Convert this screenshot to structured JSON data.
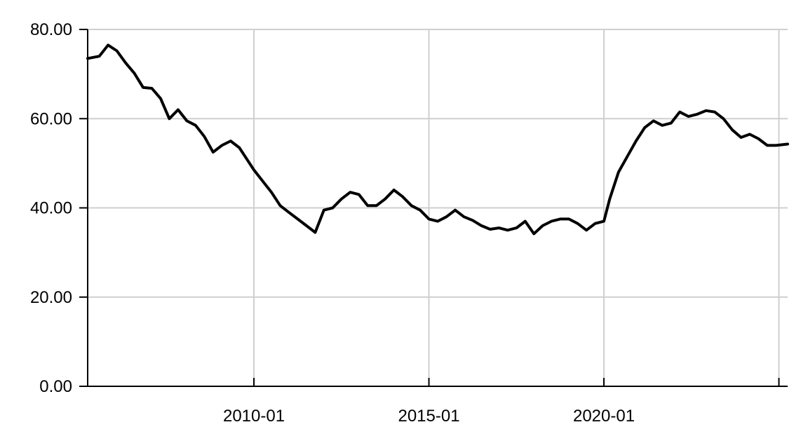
{
  "chart_data": {
    "type": "line",
    "title": "",
    "xlabel": "",
    "ylabel": "",
    "grid": true,
    "xlim": [
      "2005-04",
      "2025-04"
    ],
    "ylim": [
      0,
      80
    ],
    "y_ticks": [
      0,
      20,
      40,
      60,
      80
    ],
    "y_tick_labels": [
      "0.00",
      "20.00",
      "40.00",
      "60.00",
      "80.00"
    ],
    "x_ticks": [
      "2010-01",
      "2015-01",
      "2020-01",
      "2025-01"
    ],
    "x_tick_labels": [
      "2010-01",
      "2015-01",
      "2020-01",
      ""
    ],
    "series": [
      {
        "color": "#000000",
        "points": [
          [
            "2005-04",
            73.5
          ],
          [
            "2005-08",
            74.0
          ],
          [
            "2005-11",
            76.5
          ],
          [
            "2006-02",
            75.2
          ],
          [
            "2006-05",
            72.5
          ],
          [
            "2006-08",
            70.2
          ],
          [
            "2006-11",
            67.0
          ],
          [
            "2007-02",
            66.8
          ],
          [
            "2007-05",
            64.5
          ],
          [
            "2007-08",
            60.0
          ],
          [
            "2007-11",
            62.0
          ],
          [
            "2008-02",
            59.5
          ],
          [
            "2008-05",
            58.5
          ],
          [
            "2008-08",
            56.0
          ],
          [
            "2008-11",
            52.5
          ],
          [
            "2009-02",
            54.0
          ],
          [
            "2009-05",
            55.0
          ],
          [
            "2009-08",
            53.5
          ],
          [
            "2009-11",
            50.5
          ],
          [
            "2010-01",
            48.5
          ],
          [
            "2010-04",
            46.0
          ],
          [
            "2010-07",
            43.5
          ],
          [
            "2010-10",
            40.5
          ],
          [
            "2011-01",
            39.0
          ],
          [
            "2011-04",
            37.5
          ],
          [
            "2011-07",
            36.0
          ],
          [
            "2011-10",
            34.5
          ],
          [
            "2012-01",
            39.5
          ],
          [
            "2012-04",
            40.0
          ],
          [
            "2012-07",
            42.0
          ],
          [
            "2012-10",
            43.5
          ],
          [
            "2013-01",
            43.0
          ],
          [
            "2013-04",
            40.5
          ],
          [
            "2013-07",
            40.5
          ],
          [
            "2013-10",
            42.0
          ],
          [
            "2014-01",
            44.0
          ],
          [
            "2014-04",
            42.5
          ],
          [
            "2014-07",
            40.5
          ],
          [
            "2014-10",
            39.5
          ],
          [
            "2015-01",
            37.5
          ],
          [
            "2015-04",
            37.0
          ],
          [
            "2015-07",
            38.0
          ],
          [
            "2015-10",
            39.5
          ],
          [
            "2016-01",
            38.0
          ],
          [
            "2016-04",
            37.2
          ],
          [
            "2016-07",
            36.0
          ],
          [
            "2016-10",
            35.2
          ],
          [
            "2017-01",
            35.5
          ],
          [
            "2017-04",
            35.0
          ],
          [
            "2017-07",
            35.5
          ],
          [
            "2017-10",
            37.0
          ],
          [
            "2018-01",
            34.2
          ],
          [
            "2018-04",
            36.0
          ],
          [
            "2018-07",
            37.0
          ],
          [
            "2018-10",
            37.5
          ],
          [
            "2019-01",
            37.5
          ],
          [
            "2019-04",
            36.5
          ],
          [
            "2019-07",
            35.0
          ],
          [
            "2019-10",
            36.5
          ],
          [
            "2020-01",
            37.0
          ],
          [
            "2020-03",
            42.0
          ],
          [
            "2020-06",
            48.0
          ],
          [
            "2020-09",
            51.5
          ],
          [
            "2020-12",
            55.0
          ],
          [
            "2021-03",
            58.0
          ],
          [
            "2021-06",
            59.5
          ],
          [
            "2021-09",
            58.5
          ],
          [
            "2021-12",
            59.0
          ],
          [
            "2022-03",
            61.5
          ],
          [
            "2022-06",
            60.5
          ],
          [
            "2022-09",
            61.0
          ],
          [
            "2022-12",
            61.8
          ],
          [
            "2023-03",
            61.5
          ],
          [
            "2023-06",
            60.0
          ],
          [
            "2023-09",
            57.5
          ],
          [
            "2023-12",
            55.8
          ],
          [
            "2024-03",
            56.5
          ],
          [
            "2024-06",
            55.5
          ],
          [
            "2024-09",
            54.0
          ],
          [
            "2024-12",
            54.0
          ],
          [
            "2025-04",
            54.3
          ]
        ]
      }
    ]
  }
}
